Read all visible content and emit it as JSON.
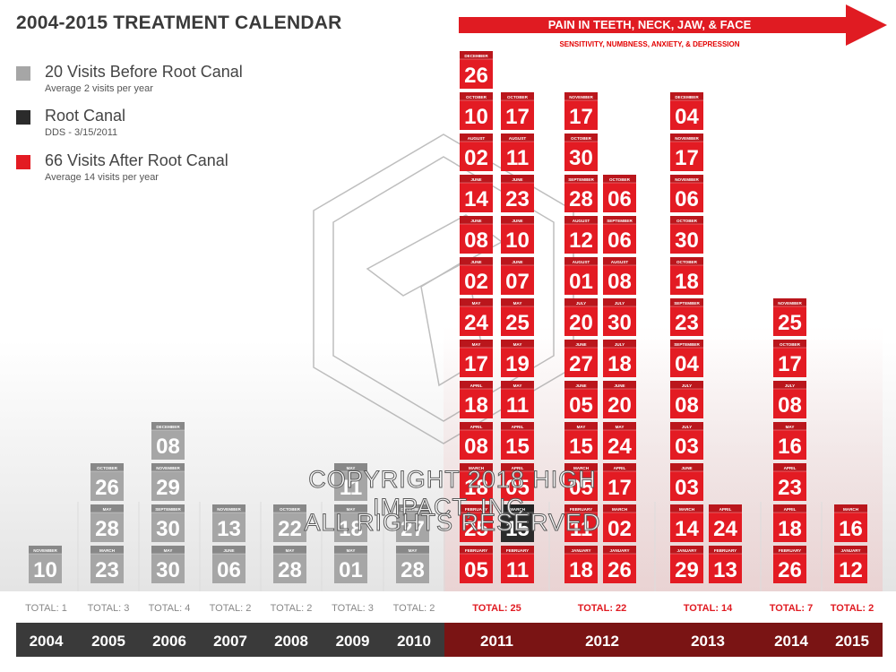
{
  "title": "2004-2015  TREATMENT CALENDAR",
  "legend": [
    {
      "color": "#a6a6a6",
      "label": "20 Visits Before Root Canal",
      "sub": "Average 2 visits per year"
    },
    {
      "color": "#2b2b2b",
      "label": "Root Canal",
      "sub": "DDS - 3/15/2011"
    },
    {
      "color": "#e31b23",
      "label": "66 Visits After Root Canal",
      "sub": "Average 14 visits per year"
    }
  ],
  "banner": {
    "title": "PAIN IN TEETH, NECK, JAW, & FACE",
    "subtitle": "SENSITIVITY, NUMBNESS, ANXIETY, & DEPRESSION"
  },
  "watermark": [
    "COPYRIGHT 2018 HIGH IMPACT, INC.",
    "ALL RIGHTS RESERVED"
  ],
  "colors": {
    "before": "#a6a6a6",
    "root_canal": "#2b2b2b",
    "after": "#e31b23",
    "year_bar": "#3a3a3a",
    "year_bar_after": "#7a1414"
  },
  "chart_data": {
    "type": "table",
    "years": [
      {
        "year": "2004",
        "total": "TOTAL: 1",
        "era": "before",
        "columns": [
          [
            [
              "NOVEMBER",
              "10"
            ]
          ]
        ]
      },
      {
        "year": "2005",
        "total": "TOTAL: 3",
        "era": "before",
        "columns": [
          [
            [
              "MARCH",
              "23"
            ],
            [
              "MAY",
              "28"
            ],
            [
              "OCTOBER",
              "26"
            ]
          ]
        ]
      },
      {
        "year": "2006",
        "total": "TOTAL: 4",
        "era": "before",
        "columns": [
          [
            [
              "MAY",
              "30"
            ],
            [
              "SEPTEMBER",
              "30"
            ],
            [
              "NOVEMBER",
              "29"
            ],
            [
              "DECEMBER",
              "08"
            ]
          ]
        ]
      },
      {
        "year": "2007",
        "total": "TOTAL: 2",
        "era": "before",
        "columns": [
          [
            [
              "JUNE",
              "06"
            ],
            [
              "NOVEMBER",
              "13"
            ]
          ]
        ]
      },
      {
        "year": "2008",
        "total": "TOTAL: 2",
        "era": "before",
        "columns": [
          [
            [
              "MAY",
              "28"
            ],
            [
              "OCTOBER",
              "22"
            ]
          ]
        ]
      },
      {
        "year": "2009",
        "total": "TOTAL: 3",
        "era": "before",
        "columns": [
          [
            [
              "MAY",
              "01"
            ],
            [
              "MAY",
              "18"
            ],
            [
              "MAY",
              "11"
            ]
          ]
        ]
      },
      {
        "year": "2010",
        "total": "TOTAL: 2",
        "era": "before",
        "columns": [
          [
            [
              "MAY",
              "28"
            ],
            [
              "DECEMBER",
              "27"
            ]
          ]
        ]
      },
      {
        "year": "2011",
        "total": "TOTAL: 25",
        "era": "after",
        "columns": [
          [
            [
              "FEBRUARY",
              "05"
            ],
            [
              "FEBRUARY",
              "25"
            ],
            [
              "MARCH",
              "18"
            ],
            [
              "APRIL",
              "08"
            ],
            [
              "APRIL",
              "18"
            ],
            [
              "MAY",
              "17"
            ],
            [
              "MAY",
              "24"
            ],
            [
              "JUNE",
              "02"
            ],
            [
              "JUNE",
              "08"
            ],
            [
              "JUNE",
              "14"
            ],
            [
              "AUGUST",
              "02"
            ],
            [
              "OCTOBER",
              "10"
            ],
            [
              "DECEMBER",
              "26"
            ]
          ],
          [
            [
              "FEBRUARY",
              "11"
            ],
            [
              "MARCH",
              "15"
            ],
            [
              "APRIL",
              "05"
            ],
            [
              "APRIL",
              "15"
            ],
            [
              "MAY",
              "11"
            ],
            [
              "MAY",
              "19"
            ],
            [
              "MAY",
              "25"
            ],
            [
              "JUNE",
              "07"
            ],
            [
              "JUNE",
              "10"
            ],
            [
              "JUNE",
              "23"
            ],
            [
              "AUGUST",
              "11"
            ],
            [
              "OCTOBER",
              "17"
            ]
          ]
        ]
      },
      {
        "year": "2012",
        "total": "TOTAL: 22",
        "era": "after",
        "columns": [
          [
            [
              "JANUARY",
              "18"
            ],
            [
              "FEBRUARY",
              "11"
            ],
            [
              "MARCH",
              "05"
            ],
            [
              "MAY",
              "15"
            ],
            [
              "JUNE",
              "05"
            ],
            [
              "JUNE",
              "27"
            ],
            [
              "JULY",
              "20"
            ],
            [
              "AUGUST",
              "01"
            ],
            [
              "AUGUST",
              "12"
            ],
            [
              "SEPTEMBER",
              "28"
            ],
            [
              "OCTOBER",
              "30"
            ],
            [
              "NOVEMBER",
              "17"
            ]
          ],
          [
            [
              "JANUARY",
              "26"
            ],
            [
              "MARCH",
              "02"
            ],
            [
              "APRIL",
              "17"
            ],
            [
              "MAY",
              "24"
            ],
            [
              "JUNE",
              "20"
            ],
            [
              "JULY",
              "18"
            ],
            [
              "JULY",
              "30"
            ],
            [
              "AUGUST",
              "08"
            ],
            [
              "SEPTEMBER",
              "06"
            ],
            [
              "OCTOBER",
              "06"
            ]
          ]
        ]
      },
      {
        "year": "2013",
        "total": "TOTAL: 14",
        "era": "after",
        "columns": [
          [
            [
              "JANUARY",
              "29"
            ],
            [
              "MARCH",
              "14"
            ],
            [
              "JUNE",
              "03"
            ],
            [
              "JULY",
              "03"
            ],
            [
              "JULY",
              "08"
            ],
            [
              "SEPTEMBER",
              "04"
            ],
            [
              "SEPTEMBER",
              "23"
            ],
            [
              "OCTOBER",
              "18"
            ],
            [
              "OCTOBER",
              "30"
            ],
            [
              "NOVEMBER",
              "06"
            ],
            [
              "NOVEMBER",
              "17"
            ],
            [
              "DECEMBER",
              "04"
            ]
          ],
          [
            [
              "FEBRUARY",
              "13"
            ],
            [
              "APRIL",
              "24"
            ]
          ]
        ]
      },
      {
        "year": "2014",
        "total": "TOTAL: 7",
        "era": "after",
        "columns": [
          [
            [
              "FEBRUARY",
              "26"
            ],
            [
              "APRIL",
              "18"
            ],
            [
              "APRIL",
              "23"
            ],
            [
              "MAY",
              "16"
            ],
            [
              "JULY",
              "08"
            ],
            [
              "OCTOBER",
              "17"
            ],
            [
              "NOVEMBER",
              "25"
            ]
          ]
        ]
      },
      {
        "year": "2015",
        "total": "TOTAL: 2",
        "era": "after",
        "columns": [
          [
            [
              "JANUARY",
              "12"
            ],
            [
              "MARCH",
              "16"
            ]
          ]
        ]
      }
    ],
    "root_canal": {
      "year": "2011",
      "column": 1,
      "row": 1
    }
  }
}
